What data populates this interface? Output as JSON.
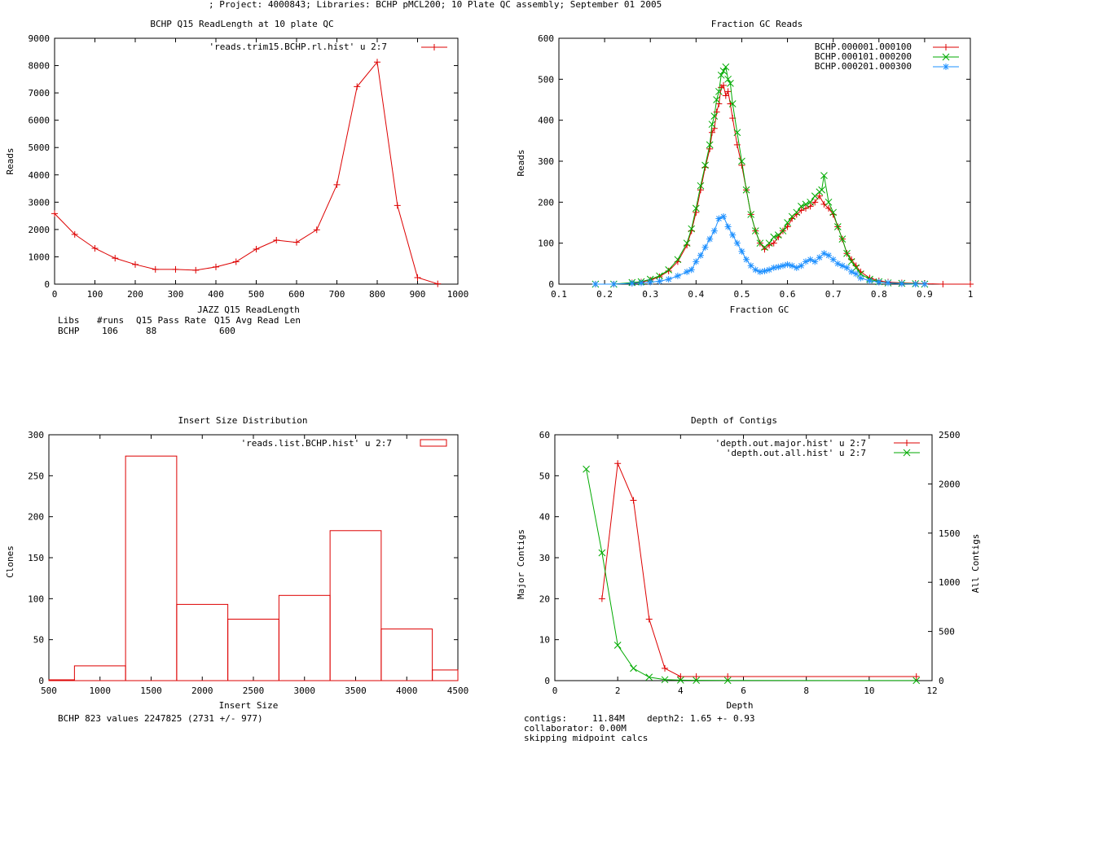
{
  "header": "; Project: 4000843; Libraries: BCHP pMCL200; 10 Plate QC assembly; September 01 2005",
  "colors": {
    "red": "#dd0000",
    "green": "#00aa00",
    "blue": "#1e90ff",
    "axis": "#000000"
  },
  "chart_data": [
    {
      "id": "readlen",
      "type": "line",
      "title": "BCHP Q15 ReadLength at 10 plate QC",
      "xlabel": "JAZZ Q15 ReadLength",
      "ylabel": "Reads",
      "xlim": [
        0,
        1000
      ],
      "ylim": [
        0,
        9000
      ],
      "xticks": [
        0,
        100,
        200,
        300,
        400,
        500,
        600,
        700,
        800,
        900,
        1000
      ],
      "yticks": [
        0,
        1000,
        2000,
        3000,
        4000,
        5000,
        6000,
        7000,
        8000,
        9000
      ],
      "series": [
        {
          "name": "'reads.trim15.BCHP.rl.hist' u 2:7",
          "color": "#dd0000",
          "marker": "plus",
          "x": [
            0,
            50,
            100,
            150,
            200,
            250,
            300,
            350,
            400,
            450,
            500,
            550,
            600,
            650,
            700,
            750,
            800,
            850,
            900,
            950
          ],
          "y": [
            2580,
            1820,
            1310,
            950,
            720,
            540,
            540,
            510,
            630,
            820,
            1280,
            1610,
            1530,
            1990,
            3640,
            7230,
            8130,
            2880,
            240,
            10
          ]
        }
      ],
      "stats": {
        "headers": [
          "Libs",
          "#runs",
          "Q15 Pass Rate",
          "Q15 Avg Read Len"
        ],
        "row": [
          "BCHP",
          "106",
          "88",
          "600"
        ]
      }
    },
    {
      "id": "gc",
      "type": "line",
      "title": "Fraction GC Reads",
      "xlabel": "Fraction GC",
      "ylabel": "Reads",
      "xlim": [
        0.1,
        1.0
      ],
      "ylim": [
        0,
        600
      ],
      "xticks": [
        0.1,
        0.2,
        0.3,
        0.4,
        0.5,
        0.6,
        0.7,
        0.8,
        0.9,
        1
      ],
      "yticks": [
        0,
        100,
        200,
        300,
        400,
        500,
        600
      ],
      "series": [
        {
          "name": "BCHP.000001.000100",
          "color": "#dd0000",
          "marker": "plus",
          "x": [
            0.18,
            0.22,
            0.26,
            0.28,
            0.3,
            0.32,
            0.34,
            0.36,
            0.38,
            0.39,
            0.4,
            0.41,
            0.42,
            0.43,
            0.435,
            0.44,
            0.445,
            0.45,
            0.455,
            0.46,
            0.465,
            0.47,
            0.475,
            0.48,
            0.49,
            0.5,
            0.51,
            0.52,
            0.53,
            0.54,
            0.55,
            0.56,
            0.57,
            0.58,
            0.59,
            0.6,
            0.61,
            0.62,
            0.63,
            0.64,
            0.65,
            0.66,
            0.67,
            0.68,
            0.69,
            0.7,
            0.71,
            0.72,
            0.73,
            0.74,
            0.75,
            0.76,
            0.78,
            0.8,
            0.82,
            0.85,
            0.88,
            0.9,
            0.94,
            1.0
          ],
          "y": [
            0,
            0,
            3,
            5,
            10,
            18,
            32,
            55,
            95,
            130,
            175,
            230,
            285,
            330,
            370,
            380,
            420,
            440,
            480,
            485,
            460,
            470,
            440,
            405,
            340,
            290,
            230,
            170,
            130,
            100,
            85,
            95,
            100,
            115,
            130,
            140,
            160,
            170,
            180,
            185,
            190,
            200,
            215,
            195,
            185,
            170,
            140,
            110,
            75,
            60,
            45,
            30,
            15,
            8,
            5,
            3,
            2,
            1,
            0,
            0
          ]
        },
        {
          "name": "BCHP.000101.000200",
          "color": "#00aa00",
          "marker": "cross",
          "x": [
            0.18,
            0.22,
            0.26,
            0.28,
            0.3,
            0.32,
            0.34,
            0.36,
            0.38,
            0.39,
            0.4,
            0.41,
            0.42,
            0.43,
            0.435,
            0.44,
            0.445,
            0.45,
            0.455,
            0.46,
            0.465,
            0.47,
            0.475,
            0.48,
            0.49,
            0.5,
            0.51,
            0.52,
            0.53,
            0.54,
            0.55,
            0.56,
            0.57,
            0.58,
            0.59,
            0.6,
            0.61,
            0.62,
            0.63,
            0.64,
            0.65,
            0.66,
            0.67,
            0.675,
            0.68,
            0.69,
            0.7,
            0.71,
            0.72,
            0.73,
            0.74,
            0.75,
            0.76,
            0.78,
            0.8,
            0.82,
            0.85,
            0.88,
            0.9
          ],
          "y": [
            0,
            0,
            4,
            6,
            12,
            20,
            35,
            60,
            100,
            135,
            185,
            240,
            290,
            340,
            390,
            410,
            450,
            470,
            510,
            520,
            530,
            500,
            490,
            440,
            370,
            300,
            230,
            170,
            130,
            100,
            90,
            100,
            115,
            120,
            130,
            150,
            165,
            175,
            190,
            195,
            200,
            215,
            225,
            230,
            265,
            200,
            175,
            140,
            110,
            75,
            55,
            40,
            25,
            12,
            6,
            3,
            2,
            1,
            0
          ]
        },
        {
          "name": "BCHP.000201.000300",
          "color": "#1e90ff",
          "marker": "star",
          "x": [
            0.18,
            0.22,
            0.26,
            0.28,
            0.3,
            0.32,
            0.34,
            0.36,
            0.38,
            0.39,
            0.4,
            0.41,
            0.42,
            0.43,
            0.44,
            0.45,
            0.46,
            0.47,
            0.48,
            0.49,
            0.5,
            0.51,
            0.52,
            0.53,
            0.54,
            0.55,
            0.56,
            0.57,
            0.58,
            0.59,
            0.6,
            0.61,
            0.62,
            0.63,
            0.64,
            0.65,
            0.66,
            0.67,
            0.68,
            0.69,
            0.7,
            0.71,
            0.72,
            0.73,
            0.74,
            0.75,
            0.76,
            0.78,
            0.8,
            0.82,
            0.85,
            0.88,
            0.9
          ],
          "y": [
            0,
            0,
            2,
            3,
            5,
            7,
            12,
            20,
            30,
            35,
            55,
            70,
            90,
            110,
            130,
            160,
            165,
            140,
            120,
            100,
            80,
            60,
            45,
            35,
            30,
            32,
            35,
            40,
            42,
            45,
            48,
            45,
            40,
            45,
            55,
            60,
            55,
            65,
            75,
            70,
            60,
            50,
            45,
            40,
            30,
            25,
            15,
            8,
            5,
            3,
            1,
            0,
            0
          ]
        }
      ]
    },
    {
      "id": "insert",
      "type": "bar",
      "title": "Insert Size Distribution",
      "xlabel": "Insert Size",
      "ylabel": "Clones",
      "xlim": [
        500,
        4500
      ],
      "ylim": [
        0,
        300
      ],
      "xticks": [
        500,
        1000,
        1500,
        2000,
        2500,
        3000,
        3500,
        4000,
        4500
      ],
      "yticks": [
        0,
        50,
        100,
        150,
        200,
        250,
        300
      ],
      "legend": "'reads.list.BCHP.hist' u 2:7",
      "color": "#dd0000",
      "bins": [
        [
          500,
          750,
          1
        ],
        [
          750,
          1250,
          18
        ],
        [
          1250,
          1750,
          274
        ],
        [
          1750,
          2250,
          93
        ],
        [
          2250,
          2750,
          75
        ],
        [
          2750,
          3250,
          104
        ],
        [
          3250,
          3750,
          183
        ],
        [
          3750,
          4250,
          63
        ],
        [
          4250,
          4500,
          13
        ]
      ],
      "summary": "BCHP 823 values 2247825 (2731 +/- 977)"
    },
    {
      "id": "depth",
      "type": "line",
      "title": "Depth of Contigs",
      "xlabel": "Depth",
      "ylabel": "Major Contigs",
      "y2label": "All Contigs",
      "xlim": [
        0,
        12
      ],
      "ylim": [
        0,
        60
      ],
      "y2lim": [
        0,
        2500
      ],
      "xticks": [
        0,
        2,
        4,
        6,
        8,
        10,
        12
      ],
      "yticks": [
        0,
        10,
        20,
        30,
        40,
        50,
        60
      ],
      "y2ticks": [
        0,
        500,
        1000,
        1500,
        2000,
        2500
      ],
      "series": [
        {
          "name": "'depth.out.major.hist' u 2:7",
          "color": "#dd0000",
          "marker": "plus",
          "axis": "y1",
          "x": [
            1.5,
            2,
            2.5,
            3,
            3.5,
            4,
            4.5,
            5.5,
            11.5
          ],
          "y": [
            20,
            53,
            44,
            15,
            3,
            1,
            1,
            1,
            1
          ]
        },
        {
          "name": "'depth.out.all.hist' u 2:7",
          "color": "#00aa00",
          "marker": "cross",
          "axis": "y2",
          "x": [
            1,
            1.5,
            2,
            2.5,
            3,
            3.5,
            4,
            4.5,
            5.5,
            11.5
          ],
          "y": [
            2150,
            1300,
            360,
            125,
            35,
            10,
            5,
            3,
            2,
            1
          ]
        }
      ],
      "notes": {
        "contigs_label": "contigs:",
        "contigs_value": "11.84M",
        "depth2": "depth2: 1.65 +- 0.93",
        "collaborator": "collaborator: 0.00M",
        "skipping": "skipping midpoint calcs"
      }
    }
  ]
}
